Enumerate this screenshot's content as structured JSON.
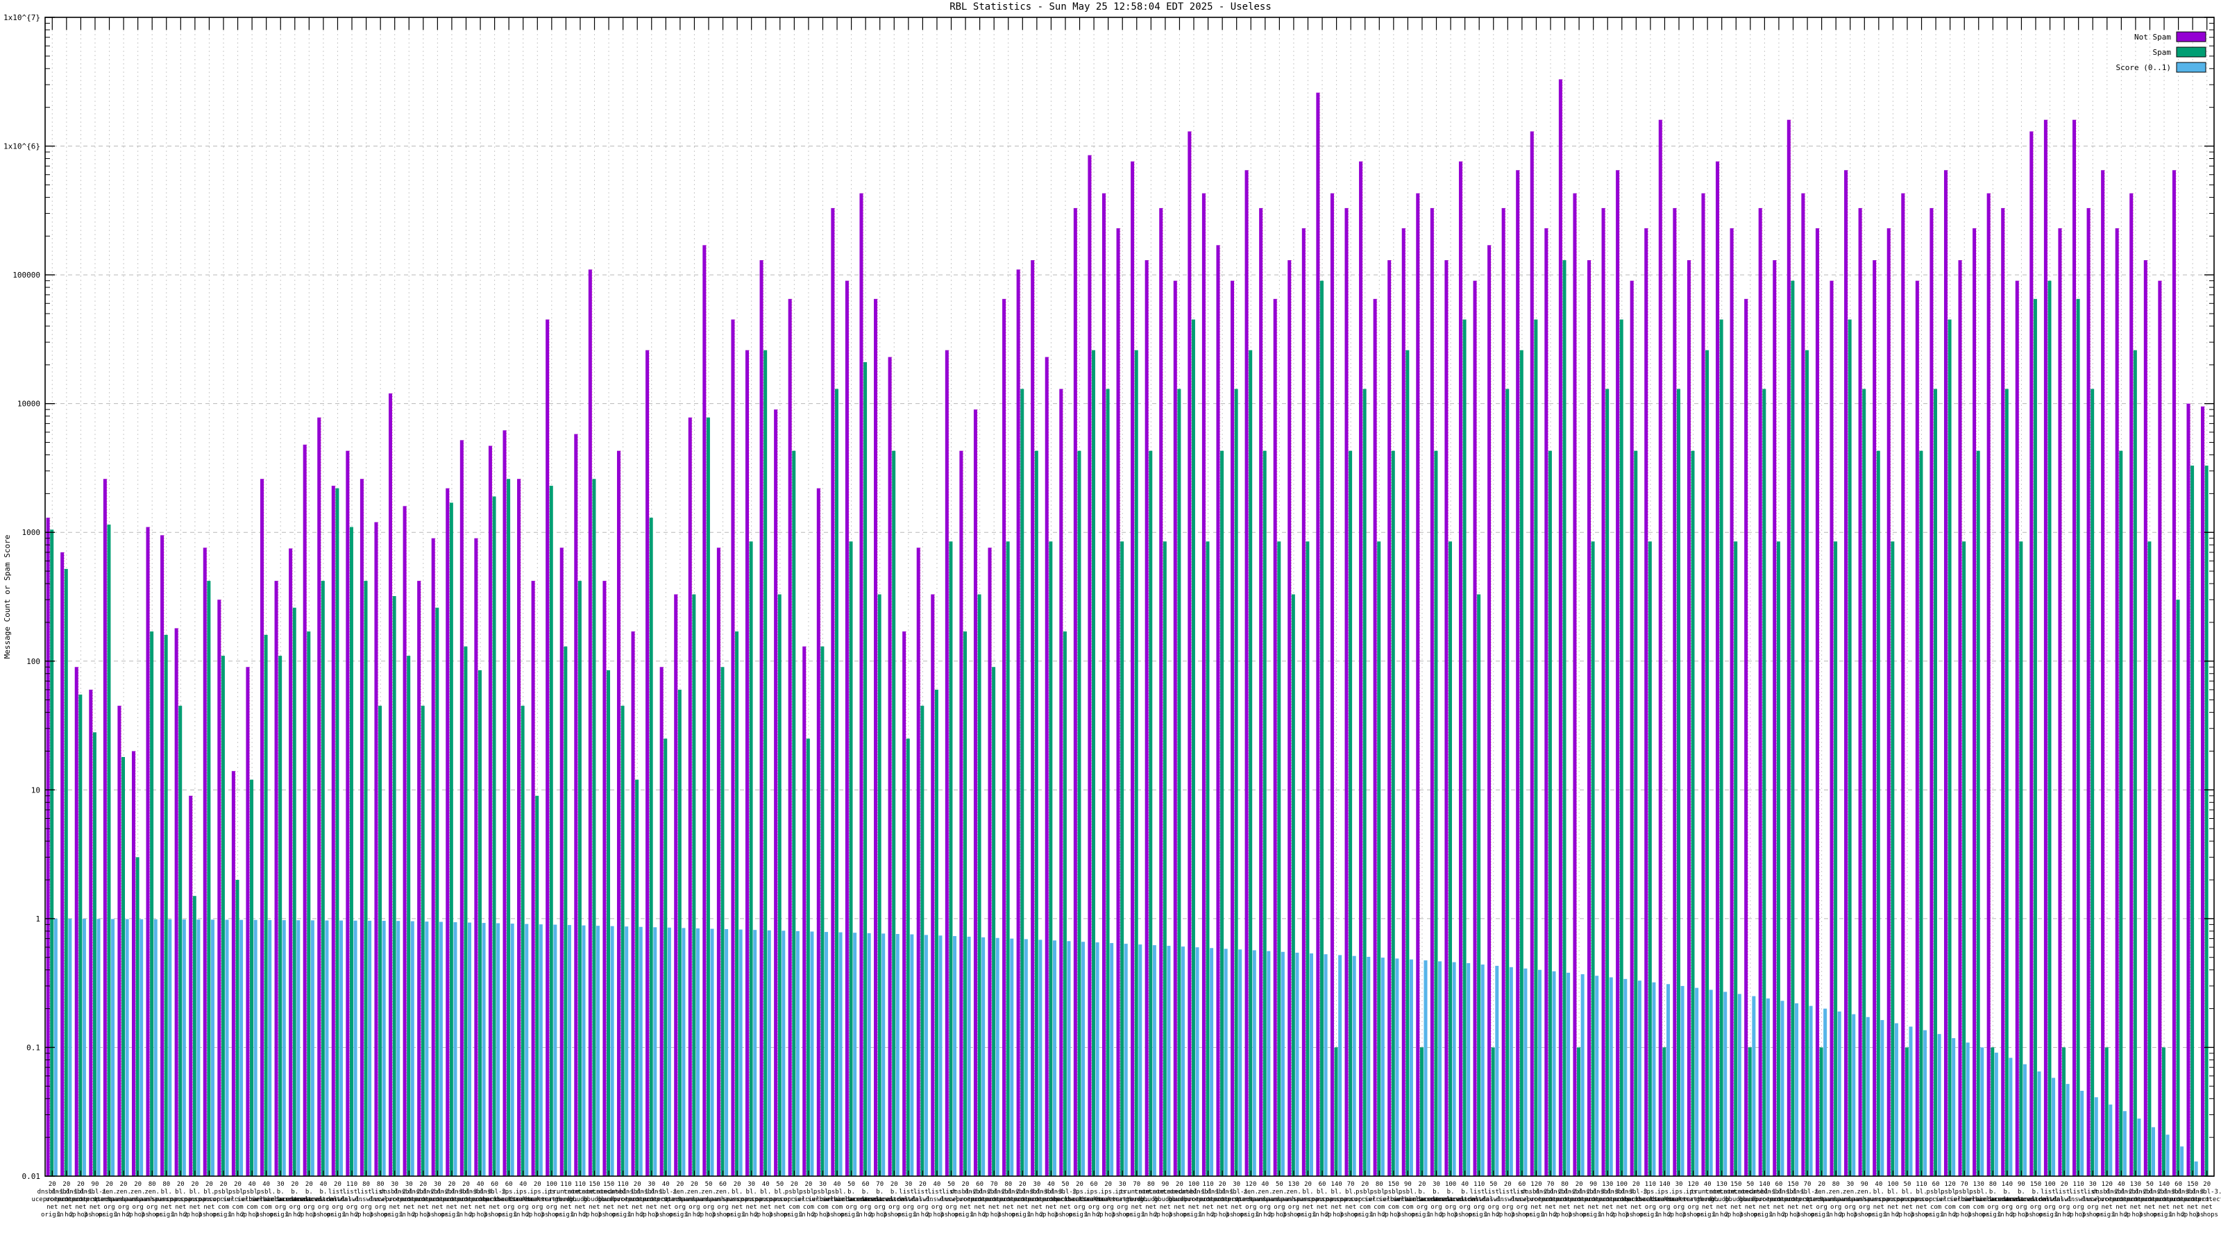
{
  "window": {
    "title": "RBL Statistics - Sun May 25 12:58:04 EDT 2025 - Useless"
  },
  "chart_data": {
    "type": "bar",
    "title": "RBL Statistics - Sun May 25 12:58:04 EDT 2025 - Useless",
    "xlabel": "",
    "ylabel": "Message Count or Spam Score",
    "y_scale": "log",
    "ylim": [
      0.01,
      10000000
    ],
    "grid": "dashed major decades + per-cluster vertical dotted lines",
    "legend_position": "top-right-inside",
    "series": [
      {
        "name": "Not Spam",
        "color": "#9400d3"
      },
      {
        "name": "Spam",
        "color": "#009e73"
      },
      {
        "name": "Score (0..1)",
        "color": "#56b4e9"
      }
    ],
    "yticks": [
      {
        "label": "1x10^{7}",
        "value": 10000000
      },
      {
        "label": "1x10^{6}",
        "value": 1000000
      },
      {
        "label": "100000",
        "value": 100000
      },
      {
        "label": "10000",
        "value": 10000
      },
      {
        "label": "1000",
        "value": 1000
      },
      {
        "label": "100",
        "value": 100
      },
      {
        "label": "10",
        "value": 10
      },
      {
        "label": "1",
        "value": 1
      },
      {
        "label": "0.1",
        "value": 0.1
      },
      {
        "label": "0.01",
        "value": 0.01
      }
    ],
    "x_label_structure": "count / rbl-host split at dots / hop depth",
    "host_cycle": [
      "dnsbl-1.uceprotect.net",
      "zen.spamhaus.org",
      "bl.spamcop.net",
      "psbl.surriel.com",
      "b.barracudacentral.org",
      "list.dnswl.org",
      "dnsbl-2.uceprotect.net",
      "dnsbl-3.uceprotect.net",
      "ips.backscatterer.org",
      "truncate.gbudb.net"
    ],
    "hop_cycle": [
      "origin",
      "1 hop",
      "2 hops",
      "3 hops"
    ],
    "counts": [
      20,
      20,
      20,
      90,
      20,
      20,
      20,
      80,
      80,
      20,
      20,
      20,
      20,
      20,
      40,
      40,
      30,
      20,
      20,
      40,
      20,
      110,
      80,
      80,
      30,
      30,
      20,
      30,
      20,
      20,
      40,
      60,
      60,
      40,
      20,
      100,
      110,
      110,
      150,
      150,
      110,
      20,
      30,
      40,
      20,
      20,
      50,
      60,
      20,
      30,
      40,
      50,
      20,
      20,
      30,
      40,
      50,
      60,
      70,
      20,
      30,
      20,
      40,
      50,
      20,
      60,
      70,
      80,
      20,
      30,
      40,
      50,
      20,
      60,
      20,
      30,
      70,
      80,
      90,
      20,
      100,
      110,
      20,
      30,
      120,
      40,
      50,
      130,
      20,
      60,
      140,
      70,
      20,
      80,
      150,
      90,
      20,
      30,
      100,
      40,
      110,
      50,
      20,
      60,
      120,
      70,
      80,
      20,
      90,
      130,
      100,
      20,
      110,
      140,
      30,
      120,
      40,
      130,
      150,
      50,
      140,
      60,
      150,
      70,
      20,
      80,
      30,
      90,
      40,
      100,
      50,
      110,
      60,
      120,
      70,
      130,
      80,
      140,
      90,
      150,
      100,
      20,
      110,
      30,
      120,
      40,
      130,
      50,
      140,
      60,
      150,
      20
    ],
    "notspam": [
      1300,
      700,
      90,
      60,
      2600,
      45,
      20,
      1100,
      950,
      180,
      9,
      760,
      300,
      14,
      90,
      2600,
      420,
      750,
      4800,
      7800,
      2300,
      4300,
      2600,
      1200,
      12000,
      1600,
      420,
      900,
      2200,
      5200,
      900,
      4700,
      6200,
      2600,
      420,
      45000,
      760,
      5800,
      110000,
      420,
      4300,
      170,
      26000,
      90,
      330,
      7800,
      170000,
      760,
      45000,
      26000,
      130000,
      9000,
      65000,
      130,
      2200,
      330000,
      90000,
      430000,
      65000,
      23000,
      170,
      760,
      330,
      26000,
      4300,
      9000,
      760,
      65000,
      110000,
      130000,
      23000,
      13000,
      330000,
      850000,
      430000,
      230000,
      760000,
      130000,
      330000,
      90000,
      1300000,
      430000,
      170000,
      90000,
      650000,
      330000,
      65000,
      130000,
      230000,
      2600000,
      430000,
      330000,
      760000,
      65000,
      130000,
      230000,
      430000,
      330000,
      130000,
      760000,
      90000,
      170000,
      330000,
      650000,
      1300000,
      230000,
      3300000,
      430000,
      130000,
      330000,
      650000,
      90000,
      230000,
      1600000,
      330000,
      130000,
      430000,
      760000,
      230000,
      65000,
      330000,
      130000,
      1600000,
      430000,
      230000,
      90000,
      650000,
      330000,
      130000,
      230000,
      430000,
      90000,
      330000,
      650000,
      130000,
      230000,
      430000,
      330000,
      90000,
      1300000,
      1600000,
      230000,
      1600000,
      330000,
      650000,
      230000,
      430000,
      130000,
      90000,
      650000,
      10000,
      9500
    ],
    "spam": [
      1050,
      520,
      55,
      28,
      1150,
      18,
      3,
      170,
      160,
      45,
      1.5,
      420,
      110,
      2,
      12,
      160,
      110,
      260,
      170,
      420,
      2200,
      1100,
      420,
      45,
      320,
      110,
      45,
      260,
      1700,
      130,
      85,
      1900,
      2600,
      45,
      9,
      2300,
      130,
      420,
      2600,
      85,
      45,
      12,
      1300,
      25,
      60,
      330,
      7800,
      90,
      170,
      850,
      26000,
      330,
      4300,
      25,
      130,
      13000,
      850,
      21000,
      330,
      4300,
      25,
      45,
      60,
      850,
      170,
      330,
      90,
      850,
      13000,
      4300,
      850,
      170,
      4300,
      26000,
      13000,
      850,
      26000,
      4300,
      850,
      13000,
      45000,
      850,
      4300,
      13000,
      26000,
      4300,
      850,
      330,
      850,
      90000,
      0.1,
      4300,
      13000,
      850,
      4300,
      26000,
      0.1,
      4300,
      850,
      45000,
      330,
      0.1,
      13000,
      26000,
      45000,
      4300,
      130000,
      0.1,
      850,
      13000,
      45000,
      4300,
      850,
      0.1,
      13000,
      4300,
      26000,
      45000,
      850,
      0.1,
      13000,
      850,
      90000,
      26000,
      0.1,
      850,
      45000,
      13000,
      4300,
      850,
      0.1,
      4300,
      13000,
      45000,
      850,
      4300,
      0.1,
      13000,
      850,
      65000,
      90000,
      0.1,
      65000,
      13000,
      0.1,
      4300,
      26000,
      850,
      0.1,
      300,
      3300,
      3300
    ],
    "score": [
      1.0,
      0.998,
      0.997,
      0.995,
      0.993,
      0.992,
      0.99,
      0.988,
      0.987,
      0.985,
      0.983,
      0.982,
      0.98,
      0.978,
      0.977,
      0.975,
      0.973,
      0.972,
      0.97,
      0.968,
      0.967,
      0.965,
      0.963,
      0.962,
      0.96,
      0.955,
      0.949,
      0.944,
      0.938,
      0.932,
      0.926,
      0.921,
      0.915,
      0.909,
      0.903,
      0.898,
      0.892,
      0.886,
      0.88,
      0.875,
      0.869,
      0.863,
      0.857,
      0.852,
      0.846,
      0.84,
      0.834,
      0.829,
      0.823,
      0.817,
      0.811,
      0.806,
      0.8,
      0.794,
      0.788,
      0.783,
      0.777,
      0.771,
      0.766,
      0.76,
      0.755,
      0.747,
      0.739,
      0.732,
      0.724,
      0.716,
      0.708,
      0.7,
      0.693,
      0.685,
      0.677,
      0.669,
      0.661,
      0.654,
      0.646,
      0.638,
      0.63,
      0.622,
      0.615,
      0.607,
      0.599,
      0.591,
      0.583,
      0.576,
      0.568,
      0.56,
      0.552,
      0.544,
      0.537,
      0.529,
      0.521,
      0.513,
      0.505,
      0.498,
      0.49,
      0.482,
      0.474,
      0.466,
      0.459,
      0.451,
      0.44,
      0.43,
      0.42,
      0.41,
      0.4,
      0.39,
      0.38,
      0.37,
      0.36,
      0.35,
      0.34,
      0.33,
      0.32,
      0.31,
      0.3,
      0.29,
      0.28,
      0.27,
      0.26,
      0.25,
      0.24,
      0.23,
      0.22,
      0.21,
      0.2,
      0.19,
      0.181,
      0.172,
      0.163,
      0.154,
      0.145,
      0.136,
      0.127,
      0.118,
      0.109,
      0.1,
      0.091,
      0.083,
      0.074,
      0.065,
      0.058,
      0.052,
      0.046,
      0.041,
      0.036,
      0.032,
      0.028,
      0.024,
      0.021,
      0.017,
      0.013,
      0.01
    ]
  }
}
